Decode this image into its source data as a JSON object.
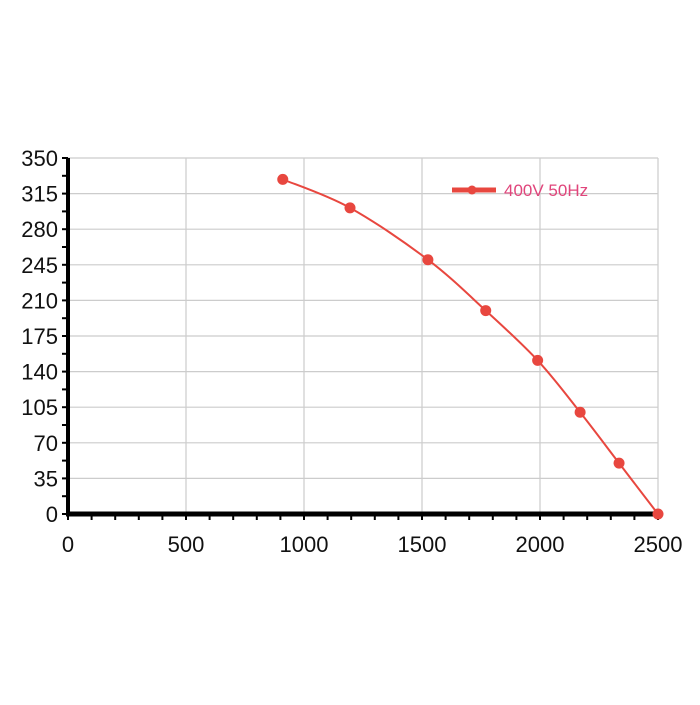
{
  "chart_data": {
    "type": "line",
    "title": "",
    "xlabel": "",
    "ylabel": "",
    "xlim": [
      0,
      2500
    ],
    "ylim": [
      0,
      350
    ],
    "x_ticks": [
      0,
      500,
      1000,
      1500,
      2000,
      2500
    ],
    "y_ticks": [
      0,
      35,
      70,
      105,
      140,
      175,
      210,
      245,
      280,
      315,
      350
    ],
    "grid": true,
    "legend_position": "top-right",
    "series": [
      {
        "name": "400V 50Hz",
        "color": "#e8473f",
        "points": [
          {
            "x": 910,
            "y": 329
          },
          {
            "x": 1195,
            "y": 301
          },
          {
            "x": 1525,
            "y": 250
          },
          {
            "x": 1770,
            "y": 200
          },
          {
            "x": 1990,
            "y": 151
          },
          {
            "x": 2170,
            "y": 100
          },
          {
            "x": 2335,
            "y": 50
          },
          {
            "x": 2500,
            "y": 0
          }
        ]
      }
    ]
  },
  "colors": {
    "axis": "#000000",
    "grid": "#cccccc",
    "legend_text": "#e0457b"
  }
}
